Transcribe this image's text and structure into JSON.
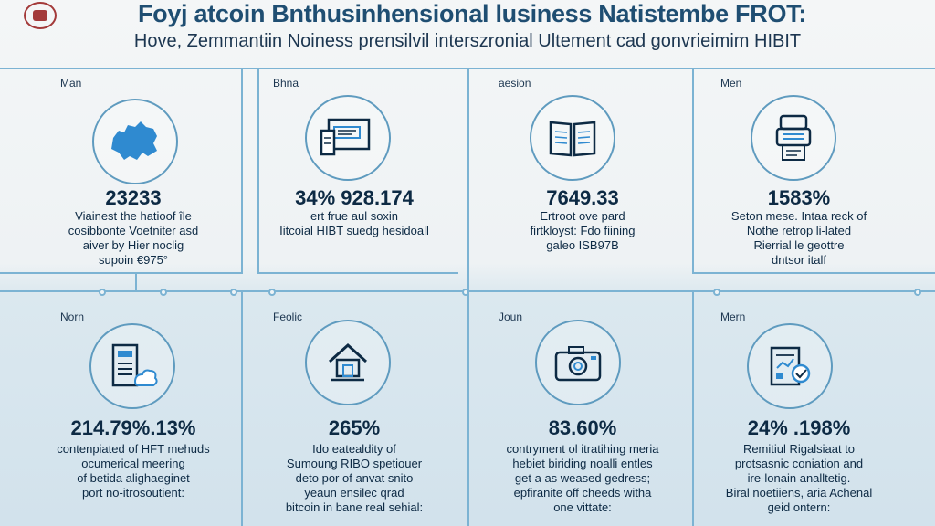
{
  "header": {
    "title": "Foyj atcoin Bnthusinhensional lusiness Natistembe FROT:",
    "subtitle": "Hove, Zemmantiin Noiness prensilvil interszronial Ultement cad gonvrieimim HIBIT"
  },
  "top_row": [
    {
      "label": "Man",
      "icon": "map-icon",
      "stat": "23233",
      "lines": [
        "Viainest the hatioof île",
        "cosibbonte Voetniter asd",
        "aiver by Hier noclig",
        "supoin €975°"
      ]
    },
    {
      "label": "Bhna",
      "icon": "document-list-icon",
      "stat": "34% 928.174",
      "lines": [
        "ert frue aul soxin",
        "Iitcoial HIBT suedg hesidoall"
      ]
    },
    {
      "label": "aesion",
      "icon": "open-book-icon",
      "stat": "7649.33",
      "lines": [
        "Ertroot ove pard",
        "firtkloyst: Fdo fiining",
        "galeo ISB97B"
      ]
    },
    {
      "label": "Men",
      "icon": "scanner-device-icon",
      "stat": "1583%",
      "lines": [
        "Seton mese. Intaa reck of",
        "Nothe retrop li-lated",
        "Rierrial le geottre",
        "dntsor italf"
      ]
    }
  ],
  "bottom_row": [
    {
      "label": "Norn",
      "icon": "server-cloud-icon",
      "stat": "214.79%.13%",
      "lines": [
        "contenpiated of HFT mehuds",
        "ocumerical meering",
        "of betida alighaeginet",
        "port no-itrosoutient:"
      ]
    },
    {
      "label": "Feolic",
      "icon": "house-icon",
      "stat": "265%",
      "lines": [
        "Ido eatealdity of",
        "Sumoung RIBO spetiouer",
        "deto por of anvat snito",
        "yeaun ensilec qrad",
        "bitcoin in bane real sehial:"
      ]
    },
    {
      "label": "Joun",
      "icon": "camera-icon",
      "stat": "83.60%",
      "lines": [
        "contryment ol itratihing meria",
        "hebiet biriding noalli entles",
        "get a as weased gedress;",
        "epfiranite off cheeds witha",
        "one vittate:"
      ]
    },
    {
      "label": "Mern",
      "icon": "tablet-chart-icon",
      "stat": "24% .198%",
      "lines": [
        "Remitiul Rigalsiaat to",
        "protsasnic coniation and",
        "ire-lonain analltetig.",
        "Biral noetiiens, aria Achenal",
        "geid ontern:"
      ]
    }
  ]
}
